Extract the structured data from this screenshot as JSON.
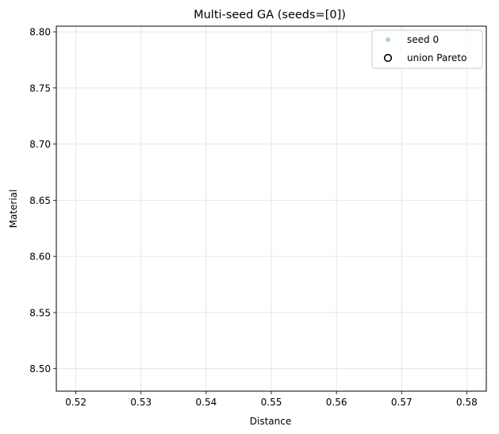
{
  "chart_data": {
    "type": "scatter",
    "title": "Multi-seed GA (seeds=[0])",
    "xlabel": "Distance",
    "ylabel": "Material",
    "xlim": [
      0.517,
      0.583
    ],
    "ylim": [
      8.48,
      8.805
    ],
    "xticks": [
      0.52,
      0.53,
      0.54,
      0.55,
      0.56,
      0.57,
      0.58
    ],
    "xtick_labels": [
      "0.52",
      "0.53",
      "0.54",
      "0.55",
      "0.56",
      "0.57",
      "0.58"
    ],
    "yticks": [
      8.5,
      8.55,
      8.6,
      8.65,
      8.7,
      8.75,
      8.8
    ],
    "ytick_labels": [
      "8.50",
      "8.55",
      "8.60",
      "8.65",
      "8.70",
      "8.75",
      "8.80"
    ],
    "grid": true,
    "legend_position": "top-right",
    "series": [
      {
        "name": "seed 0",
        "marker": "filled-circle",
        "color": "#1f77b4",
        "x": [],
        "y": []
      },
      {
        "name": "union Pareto",
        "marker": "hollow-circle",
        "color": "#000000",
        "x": [],
        "y": []
      }
    ]
  }
}
